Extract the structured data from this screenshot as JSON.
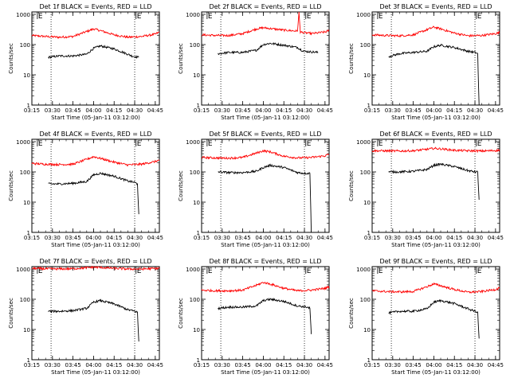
{
  "chart_data": [
    {
      "type": "line",
      "title": "Det 1f BLACK = Events, RED = LLD",
      "xlabel": "Start Time (05-Jan-11 03:12:00)",
      "ylabel": "Counts/sec",
      "x_ticks": [
        "03:15",
        "03:30",
        "03:45",
        "04:00",
        "04:15",
        "04:30",
        "04:45"
      ],
      "y_ticks": [
        "1",
        "10",
        "100",
        "1000"
      ],
      "yscale": "log",
      "xlim": [
        "03:15",
        "04:48"
      ],
      "ylim": [
        1,
        1200
      ],
      "markers": [
        {
          "label": "E",
          "time": "03:19"
        },
        {
          "label": "E",
          "time": "04:31"
        }
      ],
      "dotted_lines": [
        "03:29",
        "04:30"
      ],
      "series": [
        {
          "color": "#ff0000",
          "t": [
            "03:15",
            "03:25",
            "03:35",
            "03:45",
            "03:55",
            "04:00",
            "04:05",
            "04:15",
            "04:25",
            "04:35",
            "04:45",
            "04:48"
          ],
          "v": [
            200,
            185,
            175,
            185,
            270,
            330,
            290,
            210,
            175,
            185,
            220,
            260
          ]
        },
        {
          "color": "#000000",
          "t": [
            "03:27",
            "03:35",
            "03:45",
            "03:55",
            "04:00",
            "04:05",
            "04:15",
            "04:25",
            "04:28",
            "04:30",
            "04:33"
          ],
          "v": [
            38,
            42,
            42,
            48,
            75,
            90,
            72,
            48,
            42,
            40,
            38
          ]
        }
      ]
    },
    {
      "type": "line",
      "title": "Det 2f BLACK = Events, RED = LLD",
      "xlabel": "Start Time (05-Jan-11 03:12:00)",
      "ylabel": "Counts/sec",
      "x_ticks": [
        "03:15",
        "03:30",
        "03:45",
        "04:00",
        "04:15",
        "04:30",
        "04:45"
      ],
      "y_ticks": [
        "1",
        "10",
        "100",
        "1000"
      ],
      "yscale": "log",
      "xlim": [
        "03:15",
        "04:48"
      ],
      "ylim": [
        1,
        1200
      ],
      "markers": [
        {
          "label": "E",
          "time": "03:19"
        },
        {
          "label": "E",
          "time": "04:31"
        }
      ],
      "dotted_lines": [
        "03:29",
        "04:30"
      ],
      "series": [
        {
          "color": "#ff0000",
          "t": [
            "03:15",
            "03:25",
            "03:35",
            "03:45",
            "03:55",
            "04:00",
            "04:05",
            "04:15",
            "04:25",
            "04:26",
            "04:27",
            "04:35",
            "04:45",
            "04:48"
          ],
          "v": [
            210,
            200,
            200,
            230,
            330,
            360,
            340,
            300,
            280,
            1200,
            260,
            230,
            260,
            290
          ]
        },
        {
          "color": "#000000",
          "t": [
            "03:27",
            "03:35",
            "03:45",
            "03:55",
            "04:00",
            "04:05",
            "04:15",
            "04:25",
            "04:28",
            "04:30",
            "04:40"
          ],
          "v": [
            50,
            55,
            55,
            65,
            100,
            110,
            95,
            80,
            65,
            60,
            55
          ]
        }
      ]
    },
    {
      "type": "line",
      "title": "Det 3f BLACK = Events, RED = LLD",
      "xlabel": "Start Time (05-Jan-11 03:12:00)",
      "ylabel": "Counts/sec",
      "x_ticks": [
        "03:15",
        "03:30",
        "03:45",
        "04:00",
        "04:15",
        "04:30",
        "04:45"
      ],
      "y_ticks": [
        "1",
        "10",
        "100",
        "1000"
      ],
      "yscale": "log",
      "xlim": [
        "03:15",
        "04:48"
      ],
      "ylim": [
        1,
        1200
      ],
      "markers": [
        {
          "label": "E",
          "time": "03:19"
        },
        {
          "label": "E",
          "time": "04:31"
        }
      ],
      "dotted_lines": [
        "03:29",
        "04:30"
      ],
      "series": [
        {
          "color": "#ff0000",
          "t": [
            "03:15",
            "03:25",
            "03:35",
            "03:45",
            "03:55",
            "04:00",
            "04:05",
            "04:15",
            "04:25",
            "04:35",
            "04:45",
            "04:48"
          ],
          "v": [
            210,
            200,
            195,
            210,
            310,
            380,
            330,
            240,
            195,
            200,
            230,
            250
          ]
        },
        {
          "color": "#000000",
          "t": [
            "03:27",
            "03:35",
            "03:45",
            "03:55",
            "04:00",
            "04:05",
            "04:15",
            "04:25",
            "04:30",
            "04:32",
            "04:33"
          ],
          "v": [
            40,
            50,
            55,
            60,
            85,
            95,
            80,
            60,
            55,
            50,
            1
          ]
        }
      ]
    },
    {
      "type": "line",
      "title": "Det 4f BLACK = Events, RED = LLD",
      "xlabel": "Start Time (05-Jan-11 03:12:00)",
      "ylabel": "Counts/sec",
      "x_ticks": [
        "03:15",
        "03:30",
        "03:45",
        "04:00",
        "04:15",
        "04:30",
        "04:45"
      ],
      "y_ticks": [
        "1",
        "10",
        "100",
        "1000"
      ],
      "yscale": "log",
      "xlim": [
        "03:15",
        "04:48"
      ],
      "ylim": [
        1,
        1200
      ],
      "markers": [
        {
          "label": "E",
          "time": "03:19"
        },
        {
          "label": "E",
          "time": "04:31"
        }
      ],
      "dotted_lines": [
        "03:29",
        "04:30"
      ],
      "series": [
        {
          "color": "#ff0000",
          "t": [
            "03:15",
            "03:25",
            "03:35",
            "03:45",
            "03:55",
            "04:00",
            "04:05",
            "04:15",
            "04:25",
            "04:35",
            "04:45",
            "04:48"
          ],
          "v": [
            190,
            180,
            175,
            180,
            260,
            320,
            280,
            210,
            170,
            180,
            220,
            250
          ]
        },
        {
          "color": "#000000",
          "t": [
            "03:27",
            "03:35",
            "03:45",
            "03:55",
            "04:00",
            "04:05",
            "04:15",
            "04:25",
            "04:30",
            "04:32",
            "04:33"
          ],
          "v": [
            40,
            40,
            42,
            48,
            80,
            90,
            72,
            50,
            45,
            40,
            4
          ]
        }
      ]
    },
    {
      "type": "line",
      "title": "Det 5f BLACK = Events, RED = LLD",
      "xlabel": "Start Time (05-Jan-11 03:12:00)",
      "ylabel": "Counts/sec",
      "x_ticks": [
        "03:15",
        "03:30",
        "03:45",
        "04:00",
        "04:15",
        "04:30",
        "04:45"
      ],
      "y_ticks": [
        "1",
        "10",
        "100",
        "1000"
      ],
      "yscale": "log",
      "xlim": [
        "03:15",
        "04:48"
      ],
      "ylim": [
        1,
        1200
      ],
      "markers": [
        {
          "label": "E",
          "time": "03:19"
        },
        {
          "label": "E",
          "time": "04:31"
        }
      ],
      "dotted_lines": [
        "03:29",
        "04:30"
      ],
      "series": [
        {
          "color": "#ff0000",
          "t": [
            "03:15",
            "03:25",
            "03:35",
            "03:45",
            "03:55",
            "04:00",
            "04:05",
            "04:15",
            "04:25",
            "04:35",
            "04:45",
            "04:48"
          ],
          "v": [
            300,
            290,
            285,
            300,
            420,
            500,
            460,
            330,
            290,
            300,
            340,
            380
          ]
        },
        {
          "color": "#000000",
          "t": [
            "03:27",
            "03:35",
            "03:45",
            "03:55",
            "04:00",
            "04:05",
            "04:15",
            "04:25",
            "04:30",
            "04:34",
            "04:35"
          ],
          "v": [
            100,
            95,
            95,
            105,
            140,
            165,
            140,
            95,
            90,
            90,
            1
          ]
        }
      ]
    },
    {
      "type": "line",
      "title": "Det 6f BLACK = Events, RED = LLD",
      "xlabel": "Start Time (05-Jan-11 03:12:00)",
      "ylabel": "Counts/sec",
      "x_ticks": [
        "03:15",
        "03:30",
        "03:45",
        "04:00",
        "04:15",
        "04:30",
        "04:45"
      ],
      "y_ticks": [
        "1",
        "10",
        "100",
        "1000"
      ],
      "yscale": "log",
      "xlim": [
        "03:15",
        "04:48"
      ],
      "ylim": [
        1,
        1200
      ],
      "markers": [
        {
          "label": "E",
          "time": "03:19"
        },
        {
          "label": "E",
          "time": "04:31"
        }
      ],
      "dotted_lines": [
        "03:29",
        "04:30"
      ],
      "series": [
        {
          "color": "#ff0000",
          "t": [
            "03:15",
            "03:25",
            "03:35",
            "03:45",
            "03:55",
            "04:00",
            "04:05",
            "04:15",
            "04:25",
            "04:35",
            "04:45",
            "04:48"
          ],
          "v": [
            500,
            495,
            490,
            500,
            560,
            600,
            580,
            520,
            500,
            490,
            510,
            530
          ]
        },
        {
          "color": "#000000",
          "t": [
            "03:27",
            "03:35",
            "03:45",
            "03:55",
            "04:00",
            "04:05",
            "04:15",
            "04:25",
            "04:30",
            "04:32",
            "04:33"
          ],
          "v": [
            100,
            100,
            105,
            120,
            165,
            180,
            150,
            110,
            100,
            100,
            12
          ]
        }
      ]
    },
    {
      "type": "line",
      "title": "Det 7f BLACK = Events, RED = LLD",
      "xlabel": "Start Time (05-Jan-11 03:12:00)",
      "ylabel": "Counts/sec",
      "x_ticks": [
        "03:15",
        "03:30",
        "03:45",
        "04:00",
        "04:15",
        "04:30",
        "04:45"
      ],
      "y_ticks": [
        "1",
        "10",
        "100",
        "1000"
      ],
      "yscale": "log",
      "xlim": [
        "03:15",
        "04:48"
      ],
      "ylim": [
        1,
        1200
      ],
      "markers": [
        {
          "label": "E",
          "time": "03:19"
        },
        {
          "label": "E",
          "time": "04:31"
        }
      ],
      "dotted_lines": [
        "03:29",
        "04:30"
      ],
      "series": [
        {
          "color": "#ff0000",
          "t": [
            "03:15",
            "03:25",
            "03:35",
            "03:45",
            "03:55",
            "04:00",
            "04:05",
            "04:15",
            "04:25",
            "04:35",
            "04:45",
            "04:48"
          ],
          "v": [
            1050,
            1020,
            1000,
            1020,
            1100,
            1150,
            1120,
            1050,
            1000,
            1000,
            1040,
            1060
          ]
        },
        {
          "color": "#000000",
          "t": [
            "03:27",
            "03:35",
            "03:45",
            "03:55",
            "04:00",
            "04:05",
            "04:15",
            "04:25",
            "04:30",
            "04:32",
            "04:33"
          ],
          "v": [
            40,
            40,
            42,
            50,
            80,
            90,
            70,
            45,
            40,
            38,
            4
          ]
        }
      ]
    },
    {
      "type": "line",
      "title": "Det 8f BLACK = Events, RED = LLD",
      "xlabel": "Start Time (05-Jan-11 03:12:00)",
      "ylabel": "Counts/sec",
      "x_ticks": [
        "03:15",
        "03:30",
        "03:45",
        "04:00",
        "04:15",
        "04:30",
        "04:45"
      ],
      "y_ticks": [
        "1",
        "10",
        "100",
        "1000"
      ],
      "yscale": "log",
      "xlim": [
        "03:15",
        "04:48"
      ],
      "ylim": [
        1,
        1200
      ],
      "markers": [
        {
          "label": "E",
          "time": "03:19"
        },
        {
          "label": "E",
          "time": "04:31"
        }
      ],
      "dotted_lines": [
        "03:29",
        "04:30"
      ],
      "series": [
        {
          "color": "#ff0000",
          "t": [
            "03:15",
            "03:25",
            "03:35",
            "03:45",
            "03:55",
            "04:00",
            "04:05",
            "04:15",
            "04:25",
            "04:35",
            "04:45",
            "04:48"
          ],
          "v": [
            200,
            190,
            190,
            200,
            290,
            360,
            320,
            230,
            190,
            200,
            230,
            260
          ]
        },
        {
          "color": "#000000",
          "t": [
            "03:27",
            "03:35",
            "03:45",
            "03:55",
            "04:00",
            "04:05",
            "04:15",
            "04:25",
            "04:32",
            "04:34",
            "04:35"
          ],
          "v": [
            50,
            55,
            55,
            60,
            90,
            100,
            85,
            60,
            55,
            50,
            7
          ]
        }
      ]
    },
    {
      "type": "line",
      "title": "Det 9f BLACK = Events, RED = LLD",
      "xlabel": "Start Time (05-Jan-11 03:12:00)",
      "ylabel": "Counts/sec",
      "x_ticks": [
        "03:15",
        "03:30",
        "03:45",
        "04:00",
        "04:15",
        "04:30",
        "04:45"
      ],
      "y_ticks": [
        "1",
        "10",
        "100",
        "1000"
      ],
      "yscale": "log",
      "xlim": [
        "03:15",
        "04:48"
      ],
      "ylim": [
        1,
        1200
      ],
      "markers": [
        {
          "label": "E",
          "time": "03:19"
        },
        {
          "label": "E",
          "time": "04:31"
        }
      ],
      "dotted_lines": [
        "03:29",
        "04:30"
      ],
      "series": [
        {
          "color": "#ff0000",
          "t": [
            "03:15",
            "03:25",
            "03:35",
            "03:45",
            "03:55",
            "04:00",
            "04:05",
            "04:15",
            "04:25",
            "04:35",
            "04:45",
            "04:48"
          ],
          "v": [
            190,
            180,
            175,
            180,
            260,
            320,
            280,
            210,
            170,
            180,
            210,
            240
          ]
        },
        {
          "color": "#000000",
          "t": [
            "03:27",
            "03:35",
            "03:45",
            "03:55",
            "04:00",
            "04:05",
            "04:15",
            "04:25",
            "04:30",
            "04:32",
            "04:33"
          ],
          "v": [
            35,
            40,
            40,
            48,
            80,
            90,
            72,
            48,
            40,
            38,
            5
          ]
        }
      ]
    }
  ]
}
